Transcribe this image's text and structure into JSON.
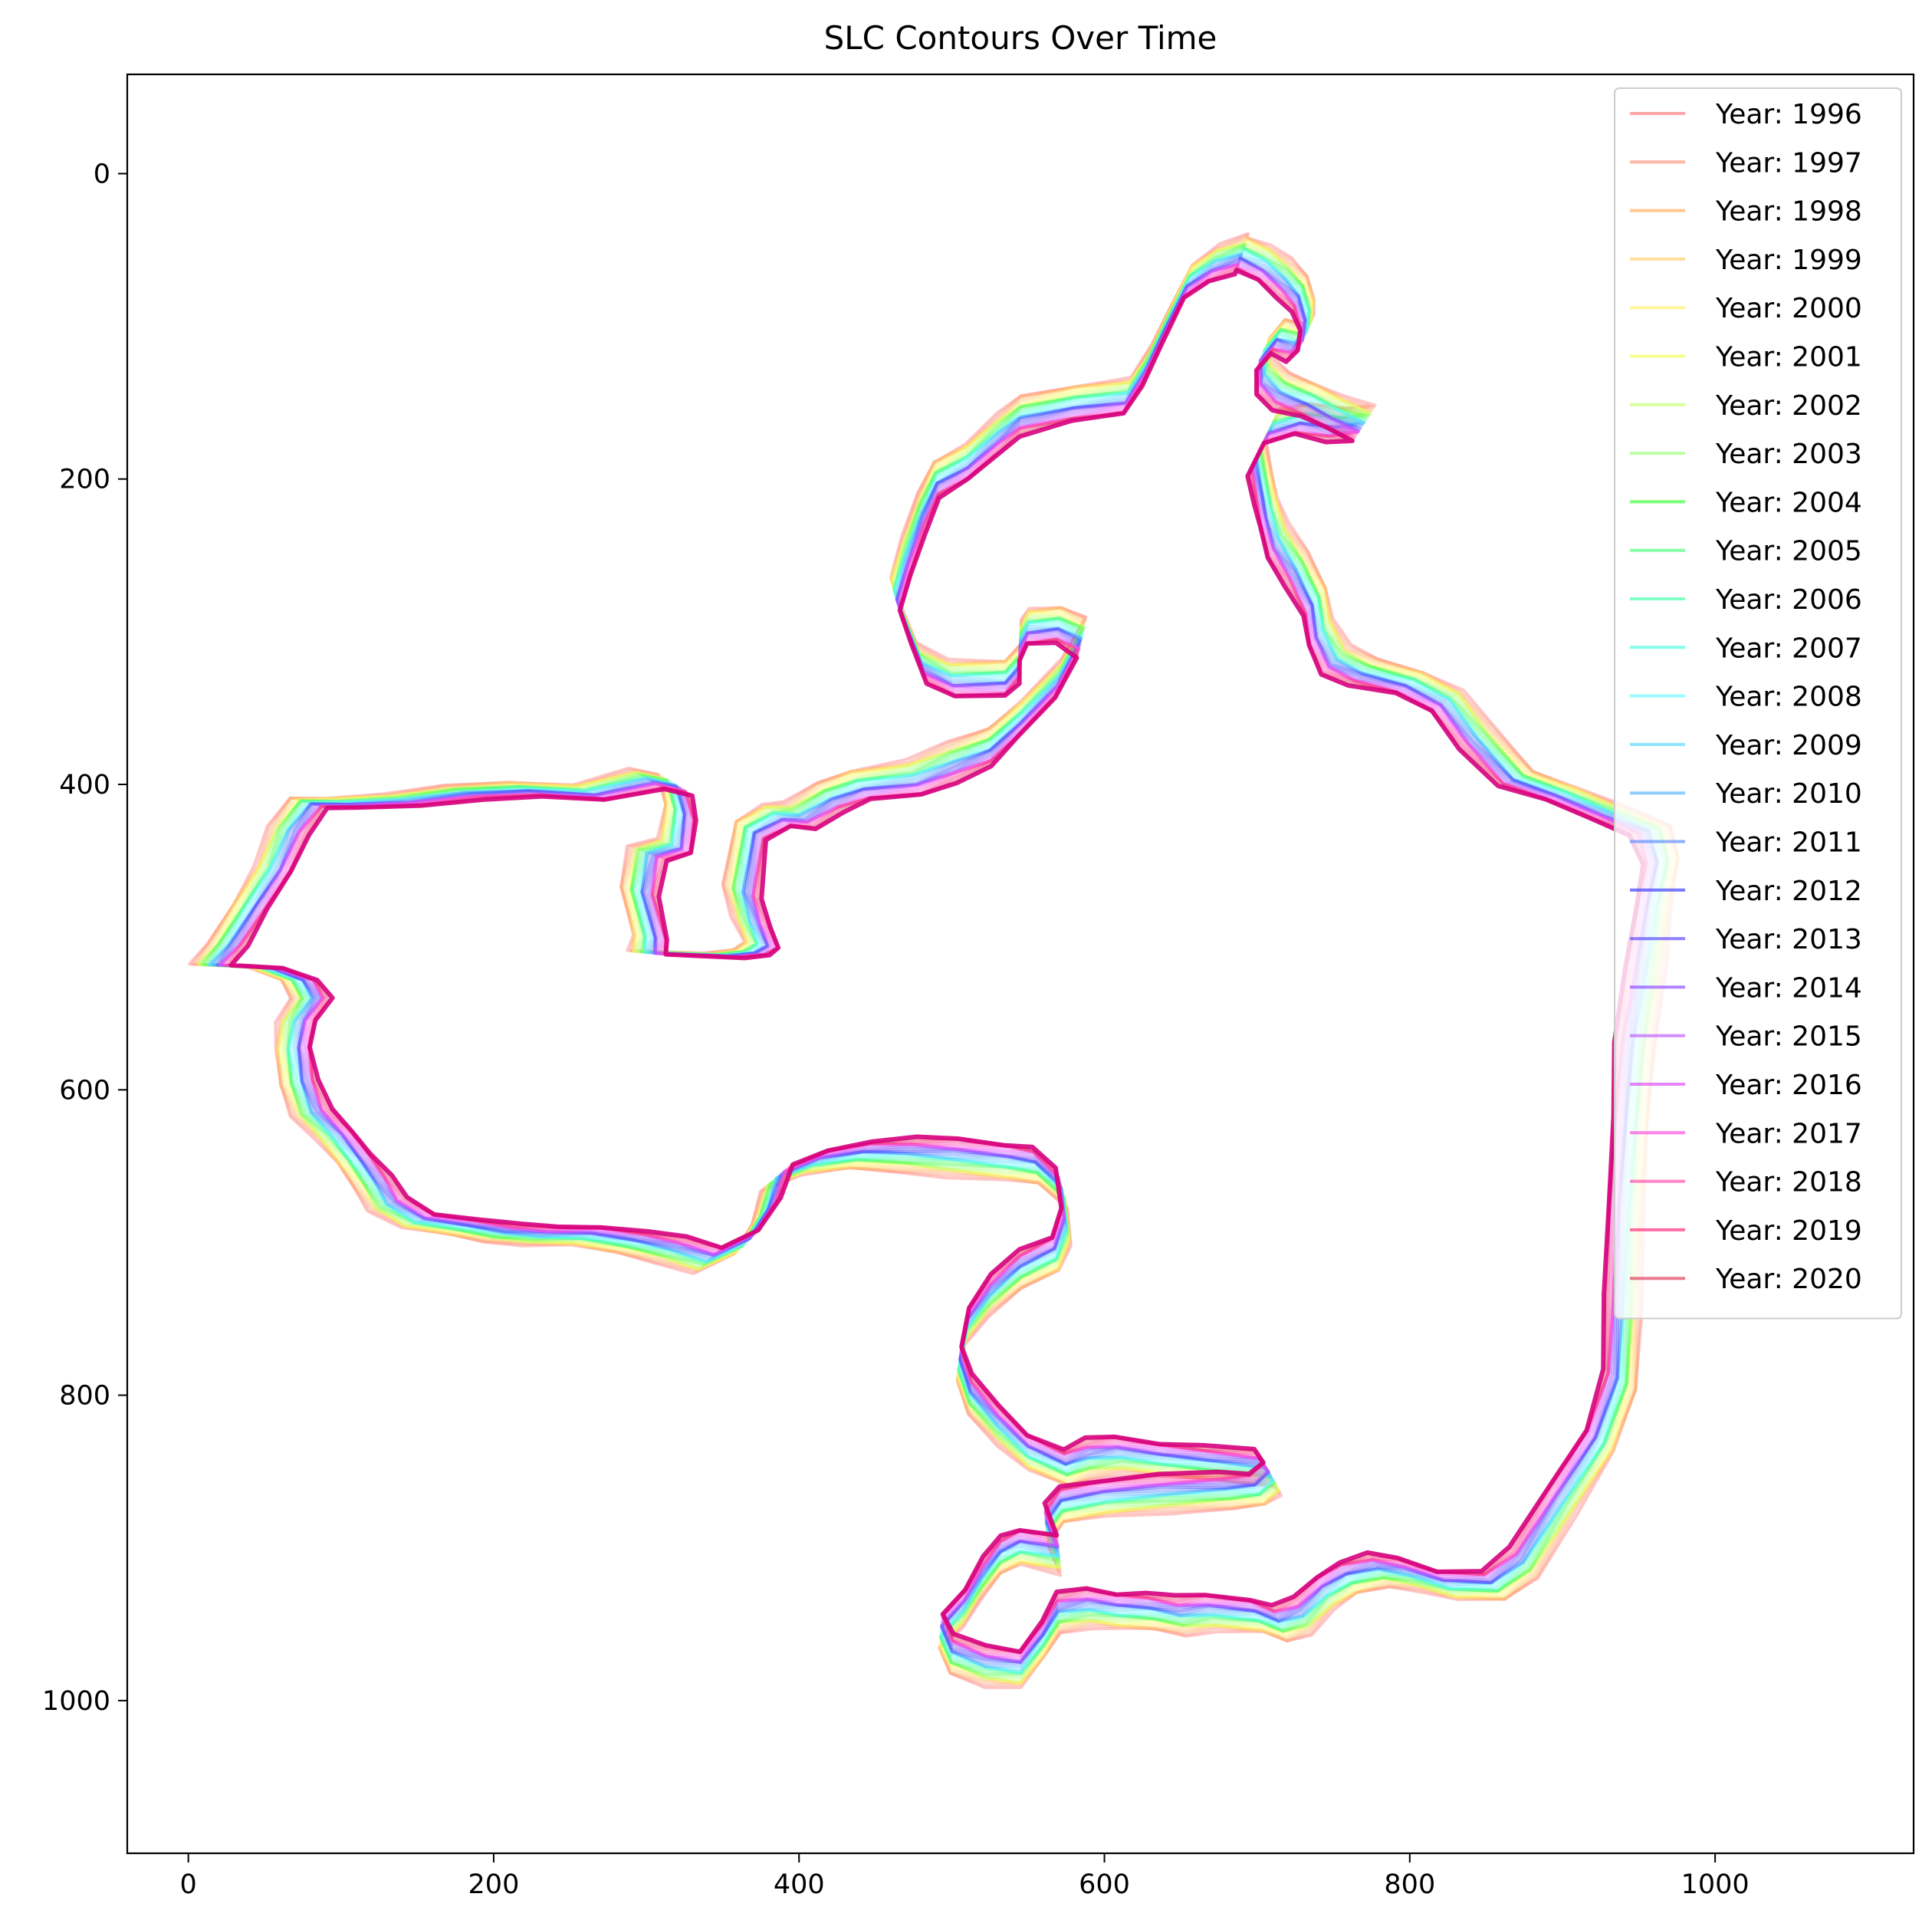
{
  "chart_data": {
    "type": "line",
    "title": "SLC Contours Over Time",
    "xlabel": "",
    "ylabel": "",
    "xlim": [
      -40,
      1130
    ],
    "ylim": [
      1100,
      -65
    ],
    "y_inverted": true,
    "x_ticks": [
      0,
      200,
      400,
      600,
      800,
      1000
    ],
    "y_ticks": [
      0,
      200,
      400,
      600,
      800,
      1000
    ],
    "grid": false,
    "legend_position": "top-right",
    "line_alpha": 0.45,
    "base_contour": [
      [
        690,
        52
      ],
      [
        705,
        58
      ],
      [
        718,
        68
      ],
      [
        728,
        78
      ],
      [
        733,
        92
      ],
      [
        732,
        104
      ],
      [
        725,
        110
      ],
      [
        714,
        106
      ],
      [
        704,
        118
      ],
      [
        705,
        132
      ],
      [
        716,
        142
      ],
      [
        734,
        148
      ],
      [
        752,
        156
      ],
      [
        770,
        163
      ],
      [
        752,
        164
      ],
      [
        730,
        160
      ],
      [
        710,
        165
      ],
      [
        700,
        185
      ],
      [
        704,
        205
      ],
      [
        708,
        222
      ],
      [
        714,
        240
      ],
      [
        726,
        258
      ],
      [
        738,
        280
      ],
      [
        742,
        300
      ],
      [
        752,
        318
      ],
      [
        770,
        326
      ],
      [
        800,
        333
      ],
      [
        825,
        345
      ],
      [
        845,
        370
      ],
      [
        870,
        396
      ],
      [
        900,
        406
      ],
      [
        930,
        418
      ],
      [
        958,
        430
      ],
      [
        965,
        450
      ],
      [
        960,
        480
      ],
      [
        955,
        520
      ],
      [
        948,
        570
      ],
      [
        945,
        620
      ],
      [
        942,
        680
      ],
      [
        940,
        740
      ],
      [
        938,
        790
      ],
      [
        925,
        830
      ],
      [
        900,
        870
      ],
      [
        875,
        910
      ],
      [
        855,
        925
      ],
      [
        825,
        925
      ],
      [
        800,
        918
      ],
      [
        780,
        915
      ],
      [
        760,
        920
      ],
      [
        745,
        930
      ],
      [
        730,
        945
      ],
      [
        715,
        950
      ],
      [
        700,
        945
      ],
      [
        670,
        943
      ],
      [
        650,
        945
      ],
      [
        630,
        942
      ],
      [
        610,
        942
      ],
      [
        590,
        940
      ],
      [
        570,
        943
      ],
      [
        560,
        960
      ],
      [
        545,
        980
      ],
      [
        522,
        978
      ],
      [
        500,
        970
      ],
      [
        493,
        955
      ],
      [
        508,
        940
      ],
      [
        520,
        920
      ],
      [
        532,
        905
      ],
      [
        545,
        900
      ],
      [
        570,
        905
      ],
      [
        562,
        885
      ],
      [
        572,
        872
      ],
      [
        600,
        868
      ],
      [
        640,
        865
      ],
      [
        680,
        863
      ],
      [
        700,
        862
      ],
      [
        710,
        855
      ],
      [
        705,
        848
      ],
      [
        670,
        845
      ],
      [
        640,
        843
      ],
      [
        610,
        840
      ],
      [
        590,
        842
      ],
      [
        575,
        848
      ],
      [
        550,
        838
      ],
      [
        530,
        820
      ],
      [
        512,
        800
      ],
      [
        505,
        780
      ],
      [
        510,
        755
      ],
      [
        525,
        735
      ],
      [
        545,
        718
      ],
      [
        568,
        708
      ],
      [
        575,
        690
      ],
      [
        572,
        665
      ],
      [
        555,
        650
      ],
      [
        535,
        648
      ],
      [
        500,
        645
      ],
      [
        470,
        643
      ],
      [
        440,
        643
      ],
      [
        410,
        648
      ],
      [
        385,
        658
      ],
      [
        378,
        680
      ],
      [
        365,
        700
      ],
      [
        340,
        712
      ],
      [
        315,
        705
      ],
      [
        290,
        700
      ],
      [
        260,
        696
      ],
      [
        230,
        696
      ],
      [
        205,
        694
      ],
      [
        180,
        690
      ],
      [
        150,
        686
      ],
      [
        130,
        675
      ],
      [
        120,
        660
      ],
      [
        108,
        645
      ],
      [
        95,
        630
      ],
      [
        80,
        615
      ],
      [
        72,
        595
      ],
      [
        68,
        573
      ],
      [
        70,
        555
      ],
      [
        80,
        540
      ],
      [
        72,
        528
      ],
      [
        50,
        520
      ],
      [
        14,
        518
      ],
      [
        25,
        505
      ],
      [
        40,
        480
      ],
      [
        55,
        455
      ],
      [
        65,
        430
      ],
      [
        78,
        412
      ],
      [
        100,
        412
      ],
      [
        140,
        410
      ],
      [
        180,
        405
      ],
      [
        220,
        403
      ],
      [
        262,
        405
      ],
      [
        300,
        396
      ],
      [
        318,
        400
      ],
      [
        322,
        418
      ],
      [
        318,
        440
      ],
      [
        300,
        445
      ],
      [
        295,
        470
      ],
      [
        302,
        500
      ],
      [
        300,
        510
      ],
      [
        350,
        512
      ],
      [
        368,
        510
      ],
      [
        375,
        505
      ],
      [
        368,
        490
      ],
      [
        362,
        470
      ],
      [
        368,
        430
      ],
      [
        385,
        420
      ],
      [
        400,
        420
      ],
      [
        420,
        408
      ],
      [
        440,
        400
      ],
      [
        475,
        395
      ],
      [
        500,
        385
      ],
      [
        525,
        375
      ],
      [
        545,
        356
      ],
      [
        570,
        330
      ],
      [
        585,
        303
      ],
      [
        570,
        295
      ],
      [
        550,
        296
      ],
      [
        545,
        305
      ],
      [
        545,
        320
      ],
      [
        535,
        330
      ],
      [
        500,
        330
      ],
      [
        480,
        320
      ],
      [
        470,
        295
      ],
      [
        463,
        275
      ],
      [
        470,
        250
      ],
      [
        480,
        222
      ],
      [
        490,
        200
      ],
      [
        510,
        188
      ],
      [
        530,
        170
      ],
      [
        545,
        158
      ],
      [
        580,
        150
      ],
      [
        615,
        145
      ],
      [
        628,
        125
      ],
      [
        640,
        100
      ],
      [
        655,
        70
      ],
      [
        672,
        58
      ],
      [
        690,
        52
      ]
    ],
    "series": [
      {
        "name": "Year: 1996",
        "color": "#ff8080",
        "offset": 12
      },
      {
        "name": "Year: 1997",
        "color": "#ff9980",
        "offset": 11
      },
      {
        "name": "Year: 1998",
        "color": "#ffb060",
        "offset": 10
      },
      {
        "name": "Year: 1999",
        "color": "#ffd070",
        "offset": 9
      },
      {
        "name": "Year: 2000",
        "color": "#fff070",
        "offset": 8
      },
      {
        "name": "Year: 2001",
        "color": "#f0ff60",
        "offset": 7
      },
      {
        "name": "Year: 2002",
        "color": "#c8ff70",
        "offset": 6
      },
      {
        "name": "Year: 2003",
        "color": "#a0ff80",
        "offset": 5
      },
      {
        "name": "Year: 2004",
        "color": "#40ff40",
        "offset": 4
      },
      {
        "name": "Year: 2005",
        "color": "#50ff80",
        "offset": 3
      },
      {
        "name": "Year: 2006",
        "color": "#50ffb0",
        "offset": 2
      },
      {
        "name": "Year: 2007",
        "color": "#50ffe0",
        "offset": 1
      },
      {
        "name": "Year: 2008",
        "color": "#70f8ff",
        "offset": 0
      },
      {
        "name": "Year: 2009",
        "color": "#60d8ff",
        "offset": -1
      },
      {
        "name": "Year: 2010",
        "color": "#60b8ff",
        "offset": -2
      },
      {
        "name": "Year: 2011",
        "color": "#6090ff",
        "offset": -3
      },
      {
        "name": "Year: 2012",
        "color": "#4040ff",
        "offset": -4
      },
      {
        "name": "Year: 2013",
        "color": "#6050ff",
        "offset": -5
      },
      {
        "name": "Year: 2014",
        "color": "#9050ff",
        "offset": -6
      },
      {
        "name": "Year: 2015",
        "color": "#c060ff",
        "offset": -7
      },
      {
        "name": "Year: 2016",
        "color": "#e050ff",
        "offset": -8
      },
      {
        "name": "Year: 2017",
        "color": "#ff50e0",
        "offset": -9
      },
      {
        "name": "Year: 2018",
        "color": "#ff50b0",
        "offset": -10
      },
      {
        "name": "Year: 2019",
        "color": "#ff3080",
        "offset": -11
      },
      {
        "name": "Year: 2020",
        "color": "#e04060",
        "offset": -12
      }
    ],
    "final_contour_color": "#d6007e"
  }
}
